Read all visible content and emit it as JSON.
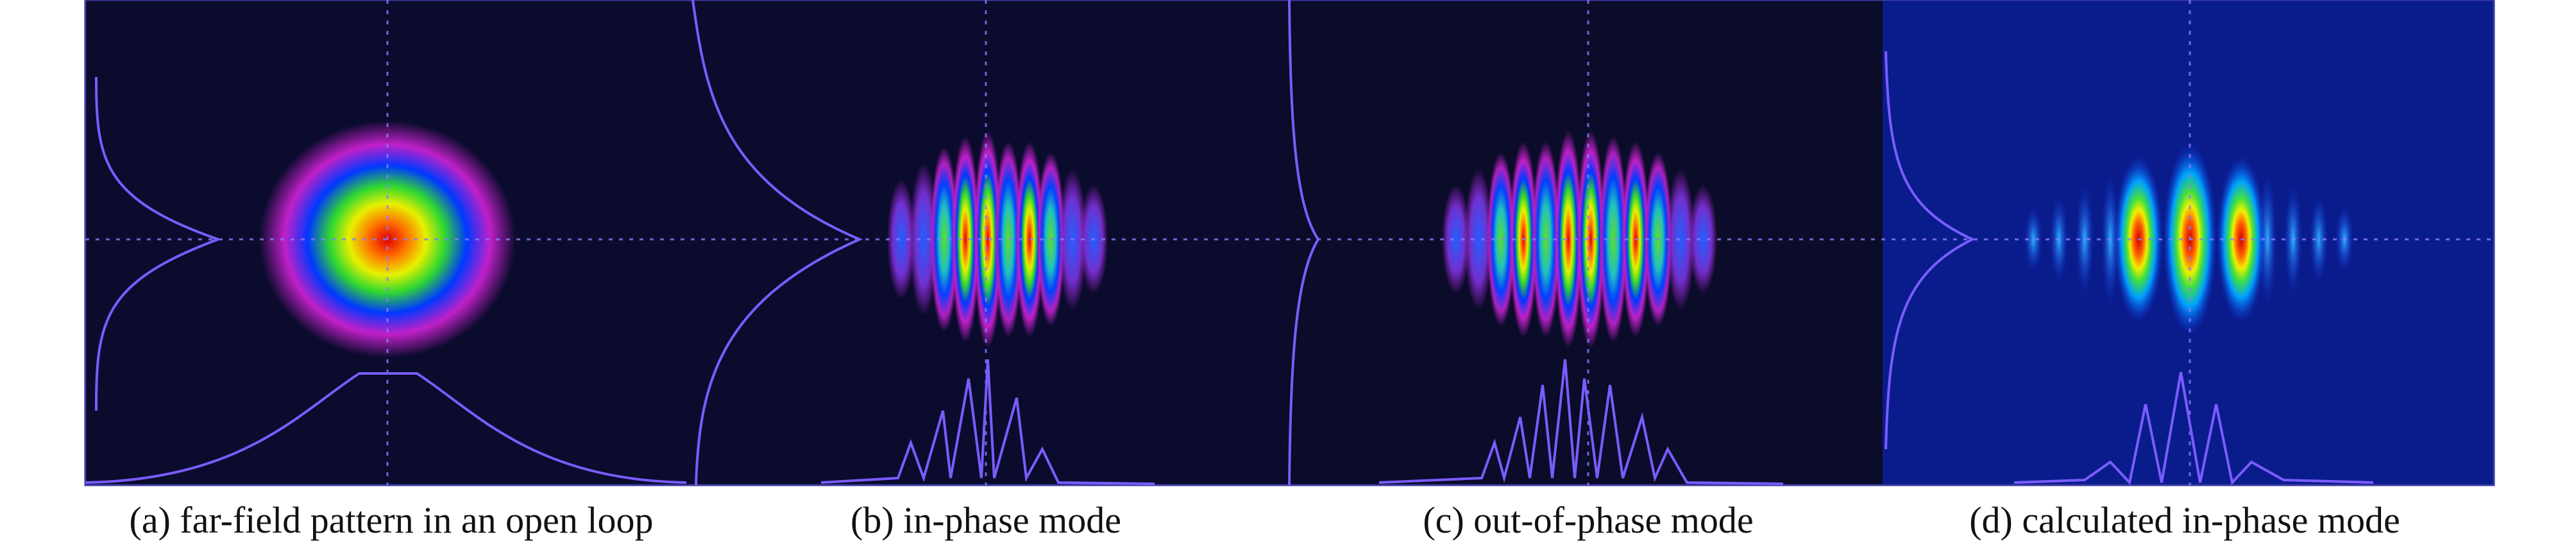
{
  "captions": [
    "(a) far-field pattern in an open loop",
    "(b) in-phase mode",
    "(c) out-of-phase mode",
    "(d) calculated in-phase mode"
  ]
}
